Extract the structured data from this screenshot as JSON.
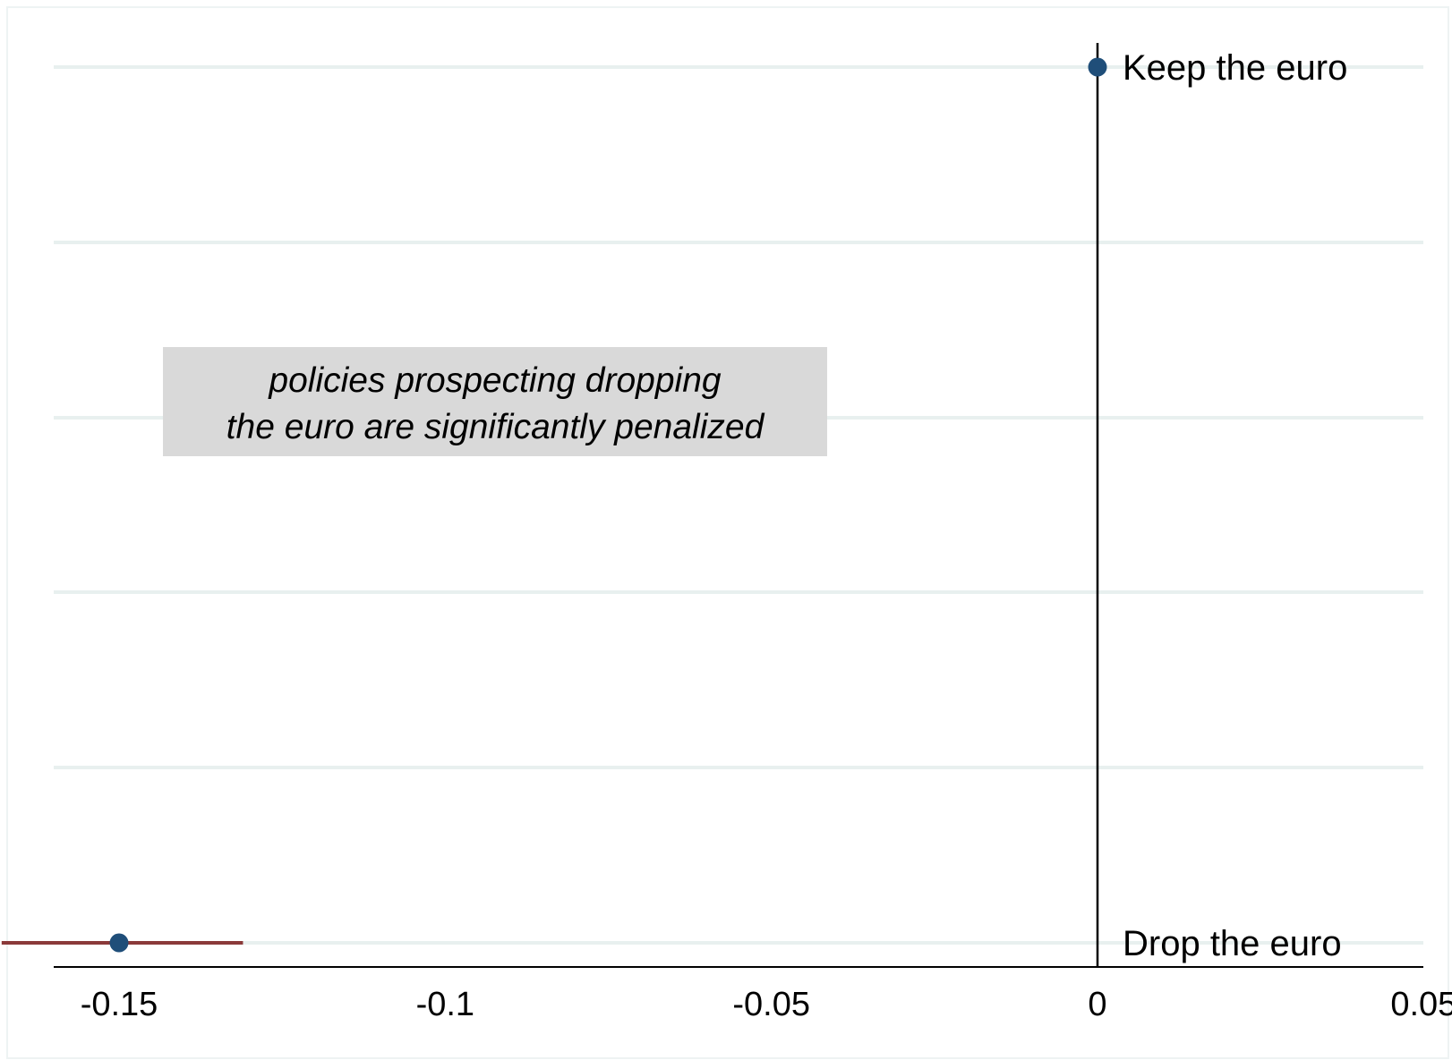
{
  "chart_data": {
    "type": "scatter",
    "subtype": "coefficient-plot",
    "title": "",
    "xlabel": "",
    "ylabel": "",
    "xlim": [
      -0.172,
      0.05
    ],
    "x_ticks": [
      -0.15,
      -0.1,
      -0.05,
      0,
      0.05
    ],
    "x_tick_labels": [
      "-0.15",
      "-0.1",
      "-0.05",
      "0",
      "0.05"
    ],
    "reference_line_x": 0,
    "grid": true,
    "categories": [
      "Keep the euro",
      "Drop the euro"
    ],
    "series": [
      {
        "points": [
          {
            "label": "Keep the euro",
            "estimate": 0,
            "ci_low": 0,
            "ci_high": 0
          },
          {
            "label": "Drop the euro",
            "estimate": -0.15,
            "ci_low": -0.168,
            "ci_high": -0.131
          }
        ]
      }
    ],
    "annotation": {
      "lines": [
        "policies prospecting dropping",
        "the euro are significantly penalized"
      ]
    },
    "colors": {
      "point": "#1f4e79",
      "ci": "#8b3a3a",
      "grid": "#e8f0ef",
      "annotation_bg": "#d9d9d9",
      "axis": "#000000"
    }
  }
}
